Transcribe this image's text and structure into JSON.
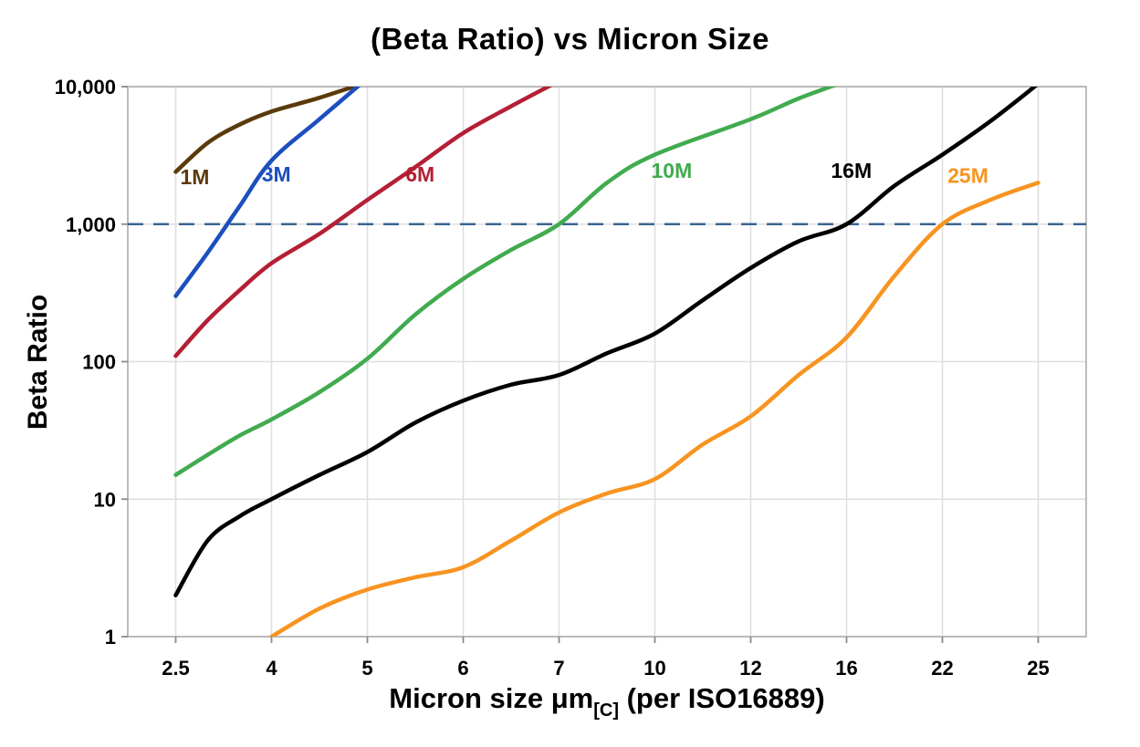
{
  "title": "(Beta Ratio) vs Micron Size",
  "chart_data": {
    "type": "line",
    "title": "(Beta Ratio) vs Micron Size",
    "x_axis": {
      "label_main": "Micron size μm",
      "label_sub": "[C]",
      "label_suffix": " (per ISO16889)",
      "categories": [
        2.5,
        4,
        5,
        6,
        7,
        10,
        12,
        16,
        22,
        25
      ],
      "tick_labels": [
        "2.5",
        "4",
        "5",
        "6",
        "7",
        "10",
        "12",
        "16",
        "22",
        "25"
      ]
    },
    "y_axis": {
      "label": "Beta Ratio",
      "scale": "log",
      "range": [
        1,
        10000
      ],
      "ticks": [
        {
          "value": 1,
          "label": "1"
        },
        {
          "value": 10,
          "label": "10"
        },
        {
          "value": 100,
          "label": "100"
        },
        {
          "value": 1000,
          "label": "1,000"
        },
        {
          "value": 10000,
          "label": "10,000"
        }
      ]
    },
    "grid": {
      "line_color": "#dedede",
      "border_color": "#b5b5b5",
      "tick_color": "#8a8a8a"
    },
    "threshold_line": {
      "value": 1000,
      "color": "#3c6690",
      "style": "dashed"
    },
    "series": [
      {
        "name": "1M",
        "color": "#5b3a0a",
        "label_pos": [
          2.8,
          2200
        ],
        "points": [
          [
            2.5,
            2400
          ],
          [
            3,
            3900
          ],
          [
            3.5,
            5300
          ],
          [
            4,
            6600
          ],
          [
            4.5,
            8300
          ],
          [
            5,
            10800
          ]
        ]
      },
      {
        "name": "3M",
        "color": "#1c4fbe",
        "label_pos": [
          4.05,
          2300
        ],
        "points": [
          [
            2.5,
            300
          ],
          [
            3,
            620
          ],
          [
            3.5,
            1350
          ],
          [
            4,
            2900
          ],
          [
            4.5,
            5800
          ],
          [
            5,
            11500
          ]
        ]
      },
      {
        "name": "6M",
        "color": "#b41f34",
        "label_pos": [
          5.55,
          2300
        ],
        "points": [
          [
            2.5,
            110
          ],
          [
            3,
            200
          ],
          [
            3.5,
            330
          ],
          [
            4,
            520
          ],
          [
            4.5,
            850
          ],
          [
            5,
            1500
          ],
          [
            5.5,
            2600
          ],
          [
            6,
            4600
          ],
          [
            6.5,
            7200
          ],
          [
            7,
            11000
          ]
        ]
      },
      {
        "name": "10M",
        "color": "#41ab4f",
        "label_pos": [
          10.35,
          2450
        ],
        "points": [
          [
            2.5,
            15
          ],
          [
            3,
            21
          ],
          [
            3.5,
            29
          ],
          [
            4,
            38
          ],
          [
            4.5,
            60
          ],
          [
            5,
            105
          ],
          [
            5.5,
            220
          ],
          [
            6,
            400
          ],
          [
            6.5,
            650
          ],
          [
            7,
            1000
          ],
          [
            8.5,
            2000
          ],
          [
            10,
            3200
          ],
          [
            12,
            5800
          ],
          [
            14,
            8200
          ],
          [
            16,
            11000
          ]
        ]
      },
      {
        "name": "16M",
        "color": "#000000",
        "label_pos": [
          16.3,
          2450
        ],
        "points": [
          [
            2.5,
            2
          ],
          [
            3,
            5
          ],
          [
            3.5,
            7.5
          ],
          [
            4,
            10
          ],
          [
            4.5,
            15
          ],
          [
            5,
            22
          ],
          [
            5.5,
            36
          ],
          [
            6,
            52
          ],
          [
            6.5,
            68
          ],
          [
            7,
            80
          ],
          [
            8.5,
            115
          ],
          [
            10,
            160
          ],
          [
            11,
            280
          ],
          [
            12,
            480
          ],
          [
            14,
            750
          ],
          [
            16,
            1000
          ],
          [
            19,
            1900
          ],
          [
            22,
            3200
          ],
          [
            23.5,
            5600
          ],
          [
            25,
            10500
          ]
        ]
      },
      {
        "name": "25M",
        "color": "#f79421",
        "label_pos": [
          22.8,
          2250
        ],
        "points": [
          [
            4,
            1
          ],
          [
            4.5,
            1.6
          ],
          [
            5,
            2.2
          ],
          [
            5.5,
            2.7
          ],
          [
            6,
            3.2
          ],
          [
            6.5,
            5
          ],
          [
            7,
            8
          ],
          [
            8.5,
            11
          ],
          [
            10,
            14
          ],
          [
            11,
            25
          ],
          [
            12,
            40
          ],
          [
            14,
            80
          ],
          [
            16,
            150
          ],
          [
            19,
            420
          ],
          [
            22,
            1000
          ],
          [
            23.5,
            1500
          ],
          [
            25,
            2000
          ]
        ]
      }
    ]
  }
}
